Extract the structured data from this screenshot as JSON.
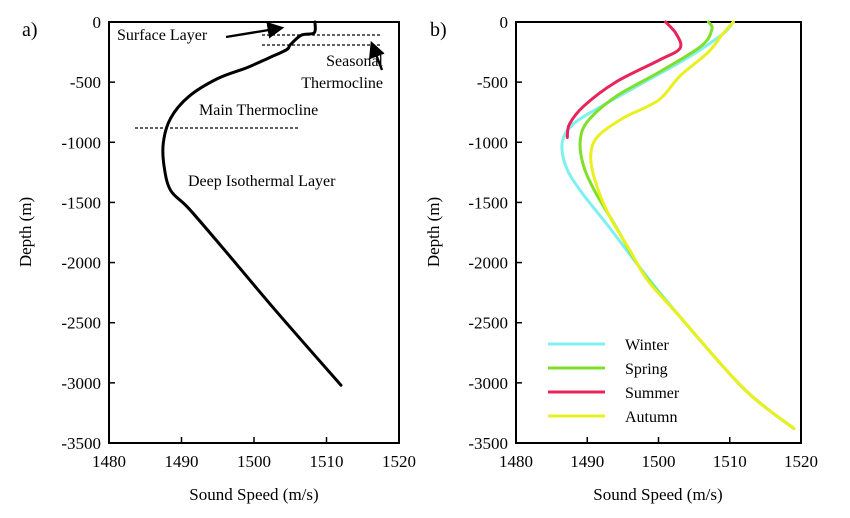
{
  "chart_data": [
    {
      "panel_label": "a)",
      "type": "line",
      "xlabel": "Sound Speed (m/s)",
      "ylabel": "Depth (m)",
      "xlim": [
        1480,
        1520
      ],
      "ylim": [
        -3500,
        0
      ],
      "xticks": [
        "1480",
        "1490",
        "1500",
        "1510",
        "1520"
      ],
      "yticks": [
        "0",
        "-500",
        "-1000",
        "-1500",
        "-2000",
        "-2500",
        "-3000",
        "-3500"
      ],
      "grid": false,
      "series": [
        {
          "color": "#000000",
          "x": [
            1508.4,
            1508.3,
            1506.5,
            1505.0,
            1504.5,
            1502.0,
            1499.0,
            1495.0,
            1491.0,
            1488.5,
            1487.5,
            1487.6,
            1488.5,
            1491.0,
            1496.0,
            1503.0,
            1512.0
          ],
          "y": [
            0,
            -90,
            -110,
            -190,
            -230,
            -300,
            -380,
            -470,
            -620,
            -800,
            -1000,
            -1200,
            -1400,
            -1550,
            -1900,
            -2400,
            -3020
          ]
        }
      ],
      "annotations": [
        {
          "text": "Surface Layer"
        },
        {
          "text": "Seasonal"
        },
        {
          "text": "Thermocline"
        },
        {
          "text": "Main Thermocline"
        },
        {
          "text": "Deep Isothermal Layer"
        }
      ]
    },
    {
      "panel_label": "b)",
      "type": "line",
      "xlabel": "Sound Speed (m/s)",
      "ylabel": "Depth (m)",
      "xlim": [
        1480,
        1520
      ],
      "ylim": [
        -3500,
        0
      ],
      "xticks": [
        "1480",
        "1490",
        "1500",
        "1510",
        "1520"
      ],
      "yticks": [
        "0",
        "-500",
        "-1000",
        "-1500",
        "-2000",
        "-2500",
        "-3000",
        "-3500"
      ],
      "grid": false,
      "legend_position": "bottom-left",
      "series": [
        {
          "name": "Winter",
          "color": "#7ff0f0",
          "x": [
            1510.5,
            1509.0,
            1504.0,
            1498.0,
            1492.0,
            1488.0,
            1486.5,
            1487.0,
            1489.0,
            1493.0,
            1497.5,
            1503.0,
            1512.0,
            1519.0
          ],
          "y": [
            0,
            -100,
            -300,
            -500,
            -700,
            -850,
            -1000,
            -1200,
            -1400,
            -1700,
            -2050,
            -2450,
            -3050,
            -3380
          ]
        },
        {
          "name": "Spring",
          "color": "#7fe02a",
          "x": [
            1507.0,
            1507.5,
            1506.0,
            1500.0,
            1494.0,
            1490.0,
            1489.0,
            1489.5,
            1491.0,
            1494.0,
            1498.0,
            1503.0,
            1512.0,
            1519.0
          ],
          "y": [
            0,
            -60,
            -200,
            -420,
            -620,
            -830,
            -1000,
            -1200,
            -1400,
            -1700,
            -2100,
            -2450,
            -3050,
            -3380
          ]
        },
        {
          "name": "Summer",
          "color": "#e8245a",
          "x": [
            1501.0,
            1502.5,
            1503.0,
            1500.0,
            1494.0,
            1489.5,
            1487.5,
            1487.2
          ],
          "y": [
            0,
            -100,
            -220,
            -320,
            -500,
            -700,
            -850,
            -960
          ]
        },
        {
          "name": "Autumn",
          "color": "#eaf020",
          "x": [
            1510.5,
            1509.0,
            1507.0,
            1503.0,
            1500.0,
            1495.0,
            1491.5,
            1490.5,
            1491.0,
            1493.0,
            1496.0,
            1498.5,
            1503.0,
            1512.0,
            1519.0
          ],
          "y": [
            0,
            -100,
            -250,
            -450,
            -650,
            -800,
            -950,
            -1100,
            -1300,
            -1600,
            -1900,
            -2150,
            -2450,
            -3050,
            -3380
          ]
        }
      ]
    }
  ]
}
